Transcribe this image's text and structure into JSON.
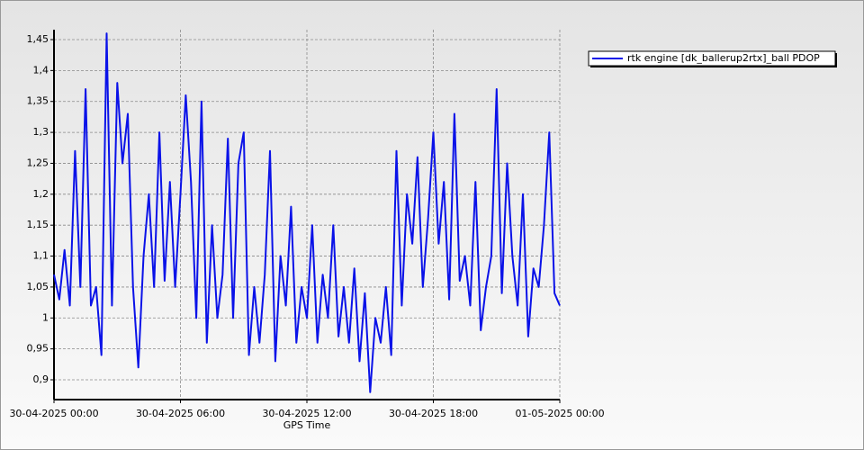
{
  "chart_data": {
    "type": "line",
    "xlabel": "GPS Time",
    "x": [
      "30-04-2025 00:00",
      "30-04-2025 00:15",
      "30-04-2025 00:30",
      "30-04-2025 00:45",
      "30-04-2025 01:00",
      "30-04-2025 01:15",
      "30-04-2025 01:30",
      "30-04-2025 01:45",
      "30-04-2025 02:00",
      "30-04-2025 02:15",
      "30-04-2025 02:30",
      "30-04-2025 02:45",
      "30-04-2025 03:00",
      "30-04-2025 03:15",
      "30-04-2025 03:30",
      "30-04-2025 03:45",
      "30-04-2025 04:00",
      "30-04-2025 04:15",
      "30-04-2025 04:30",
      "30-04-2025 04:45",
      "30-04-2025 05:00",
      "30-04-2025 05:15",
      "30-04-2025 05:30",
      "30-04-2025 05:45",
      "30-04-2025 06:00",
      "30-04-2025 06:15",
      "30-04-2025 06:30",
      "30-04-2025 06:45",
      "30-04-2025 07:00",
      "30-04-2025 07:15",
      "30-04-2025 07:30",
      "30-04-2025 07:45",
      "30-04-2025 08:00",
      "30-04-2025 08:15",
      "30-04-2025 08:30",
      "30-04-2025 08:45",
      "30-04-2025 09:00",
      "30-04-2025 09:15",
      "30-04-2025 09:30",
      "30-04-2025 09:45",
      "30-04-2025 10:00",
      "30-04-2025 10:15",
      "30-04-2025 10:30",
      "30-04-2025 10:45",
      "30-04-2025 11:00",
      "30-04-2025 11:15",
      "30-04-2025 11:30",
      "30-04-2025 11:45",
      "30-04-2025 12:00",
      "30-04-2025 12:15",
      "30-04-2025 12:30",
      "30-04-2025 12:45",
      "30-04-2025 13:00",
      "30-04-2025 13:15",
      "30-04-2025 13:30",
      "30-04-2025 13:45",
      "30-04-2025 14:00",
      "30-04-2025 14:15",
      "30-04-2025 14:30",
      "30-04-2025 14:45",
      "30-04-2025 15:00",
      "30-04-2025 15:15",
      "30-04-2025 15:30",
      "30-04-2025 15:45",
      "30-04-2025 16:00",
      "30-04-2025 16:15",
      "30-04-2025 16:30",
      "30-04-2025 16:45",
      "30-04-2025 17:00",
      "30-04-2025 17:15",
      "30-04-2025 17:30",
      "30-04-2025 17:45",
      "30-04-2025 18:00",
      "30-04-2025 18:15",
      "30-04-2025 18:30",
      "30-04-2025 18:45",
      "30-04-2025 19:00",
      "30-04-2025 19:15",
      "30-04-2025 19:30",
      "30-04-2025 19:45",
      "30-04-2025 20:00",
      "30-04-2025 20:15",
      "30-04-2025 20:30",
      "30-04-2025 20:45",
      "30-04-2025 21:00",
      "30-04-2025 21:15",
      "30-04-2025 21:30",
      "30-04-2025 21:45",
      "30-04-2025 22:00",
      "30-04-2025 22:15",
      "30-04-2025 22:30",
      "30-04-2025 22:45",
      "30-04-2025 23:00",
      "30-04-2025 23:15",
      "30-04-2025 23:30",
      "30-04-2025 23:45",
      "01-05-2025 00:00"
    ],
    "series": [
      {
        "name": "rtk engine [dk_ballerup2rtx]_ball PDOP",
        "color": "#0a12e8",
        "values": [
          1.07,
          1.03,
          1.11,
          1.02,
          1.27,
          1.05,
          1.37,
          1.02,
          1.05,
          0.94,
          1.46,
          1.02,
          1.38,
          1.25,
          1.33,
          1.05,
          0.92,
          1.1,
          1.2,
          1.05,
          1.3,
          1.06,
          1.22,
          1.05,
          1.2,
          1.36,
          1.22,
          1.0,
          1.35,
          0.96,
          1.15,
          1.0,
          1.07,
          1.29,
          1.0,
          1.25,
          1.3,
          0.94,
          1.05,
          0.96,
          1.07,
          1.27,
          0.93,
          1.1,
          1.02,
          1.18,
          0.96,
          1.05,
          1.0,
          1.15,
          0.96,
          1.07,
          1.0,
          1.15,
          0.97,
          1.05,
          0.96,
          1.08,
          0.93,
          1.04,
          0.88,
          1.0,
          0.96,
          1.05,
          0.94,
          1.27,
          1.02,
          1.2,
          1.12,
          1.26,
          1.05,
          1.16,
          1.3,
          1.12,
          1.22,
          1.03,
          1.33,
          1.06,
          1.1,
          1.02,
          1.22,
          0.98,
          1.05,
          1.1,
          1.37,
          1.04,
          1.25,
          1.1,
          1.02,
          1.2,
          0.97,
          1.08,
          1.05,
          1.15,
          1.3,
          1.04,
          1.02
        ]
      }
    ],
    "xlim": [
      "30-04-2025 00:00",
      "01-05-2025 00:00"
    ],
    "xticks": [
      "30-04-2025 00:00",
      "30-04-2025 06:00",
      "30-04-2025 12:00",
      "30-04-2025 18:00",
      "01-05-2025 00:00"
    ],
    "ylim": [
      0.868,
      1.466
    ],
    "yticks": [
      {
        "value": 0.9,
        "label": "0,9"
      },
      {
        "value": 0.95,
        "label": "0,95"
      },
      1,
      {
        "value": 1.05,
        "label": "1,05"
      },
      {
        "value": 1.1,
        "label": "1,1"
      },
      {
        "value": 1.15,
        "label": "1,15"
      },
      {
        "value": 1.2,
        "label": "1,2"
      },
      {
        "value": 1.25,
        "label": "1,25"
      },
      {
        "value": 1.3,
        "label": "1,3"
      },
      {
        "value": 1.35,
        "label": "1,35"
      },
      {
        "value": 1.4,
        "label": "1,4"
      },
      {
        "value": 1.45,
        "label": "1,45"
      }
    ],
    "grid": true,
    "legend": "upper-right"
  }
}
